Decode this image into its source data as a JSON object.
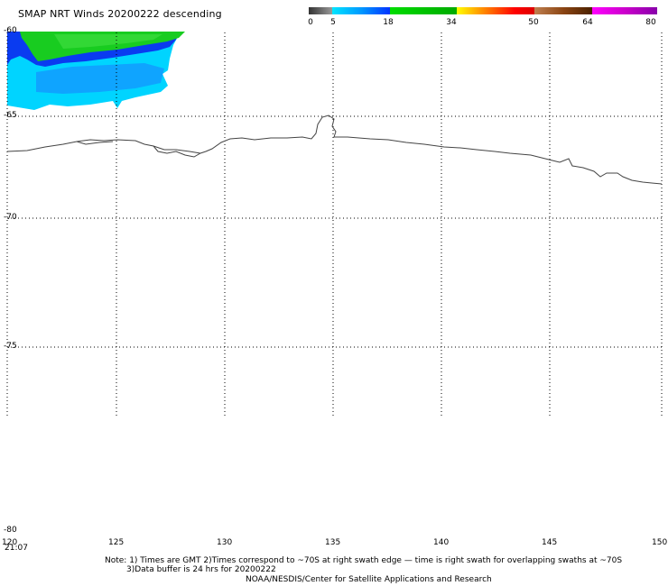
{
  "title": "SMAP NRT Winds  20200222 descending",
  "colorbar": {
    "ticks": [
      "0",
      "5",
      "18",
      "34",
      "50",
      "64",
      "80"
    ],
    "colors": [
      "#5a5a5a",
      "#00ccff",
      "#00cc00",
      "#ffcc00",
      "#ff0000",
      "#8b4513",
      "#cc00cc"
    ]
  },
  "map": {
    "lon_ticks": [
      "120",
      "125",
      "130",
      "135",
      "140",
      "145",
      "150"
    ],
    "lat_ticks": [
      "-60",
      "-65",
      "-70",
      "-75",
      "-80"
    ],
    "time_label": "21:07",
    "swath_colors": {
      "low": "#00e0ff",
      "mid": "#0033ee",
      "high": "#00cc22"
    }
  },
  "notes": {
    "line1": "Note: 1) Times are GMT 2)Times correspond to ~70S at right swath edge — time is right swath for overlapping swaths at ~70S",
    "line2": "3)Data buffer is 24 hrs for 20200222",
    "line3": "NOAA/NESDIS/Center for Satellite Applications and Research"
  }
}
